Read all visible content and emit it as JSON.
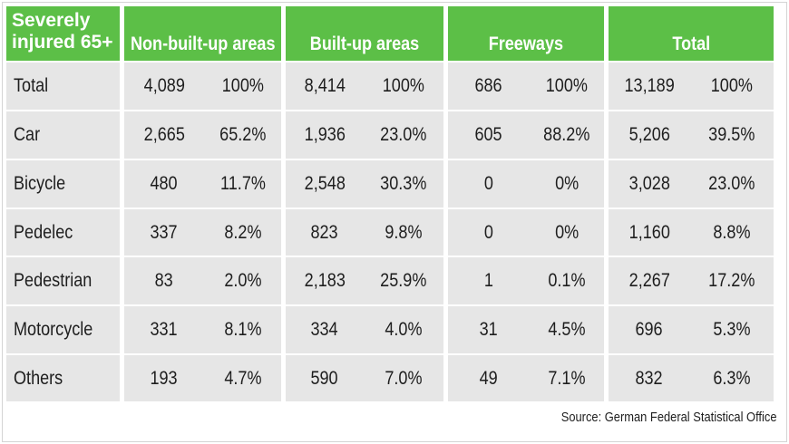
{
  "table": {
    "corner": [
      "Severely",
      "injured 65+"
    ],
    "groups": [
      "Non-built-up areas",
      "Built-up areas",
      "Freeways",
      "Total"
    ],
    "rows": [
      {
        "label": "Total",
        "values": [
          "4,089",
          "100%",
          "8,414",
          "100%",
          "686",
          "100%",
          "13,189",
          "100%"
        ]
      },
      {
        "label": "Car",
        "values": [
          "2,665",
          "65.2%",
          "1,936",
          "23.0%",
          "605",
          "88.2%",
          "5,206",
          "39.5%"
        ]
      },
      {
        "label": "Bicycle",
        "values": [
          "480",
          "11.7%",
          "2,548",
          "30.3%",
          "0",
          "0%",
          "3,028",
          "23.0%"
        ]
      },
      {
        "label": "Pedelec",
        "values": [
          "337",
          "8.2%",
          "823",
          "9.8%",
          "0",
          "0%",
          "1,160",
          "8.8%"
        ]
      },
      {
        "label": "Pedestrian",
        "values": [
          "83",
          "2.0%",
          "2,183",
          "25.9%",
          "1",
          "0.1%",
          "2,267",
          "17.2%"
        ]
      },
      {
        "label": "Motorcycle",
        "values": [
          "331",
          "8.1%",
          "334",
          "4.0%",
          "31",
          "4.5%",
          "696",
          "5.3%"
        ]
      },
      {
        "label": "Others",
        "values": [
          "193",
          "4.7%",
          "590",
          "7.0%",
          "49",
          "7.1%",
          "832",
          "6.3%"
        ]
      }
    ]
  },
  "source": "Source: German Federal Statistical Office",
  "colors": {
    "header_green": "#5cbf47",
    "cell_gray": "#e6e6e6"
  }
}
